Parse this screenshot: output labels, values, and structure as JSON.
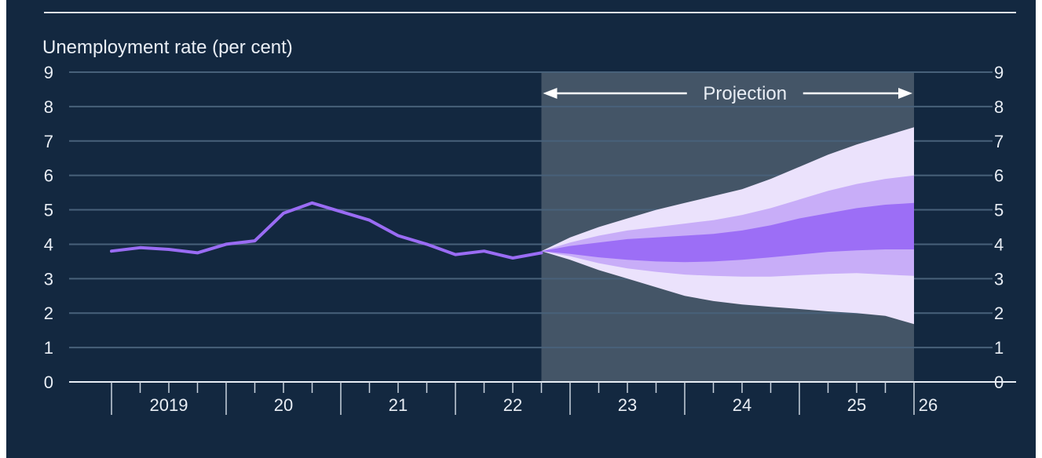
{
  "chart_data": {
    "type": "line",
    "ylabel": "Unemployment rate (per cent)",
    "ylim": [
      0,
      9
    ],
    "yticks": [
      "0",
      "1",
      "2",
      "3",
      "4",
      "5",
      "6",
      "7",
      "8",
      "9"
    ],
    "x_unit": "quarter",
    "x_range": [
      "2019 Q1",
      "2026 Q1"
    ],
    "year_labels": [
      "2019",
      "20",
      "21",
      "22",
      "23",
      "24",
      "25",
      "26"
    ],
    "projection_label": "Projection",
    "projection_start": "2022 Q4",
    "projection_end": "2026 Q1",
    "history": {
      "x": [
        "2019 Q1",
        "2019 Q2",
        "2019 Q3",
        "2019 Q4",
        "2020 Q1",
        "2020 Q2",
        "2020 Q3",
        "2020 Q4",
        "2021 Q1",
        "2021 Q2",
        "2021 Q3",
        "2021 Q4",
        "2022 Q1",
        "2022 Q2",
        "2022 Q3",
        "2022 Q4"
      ],
      "values": [
        3.8,
        3.9,
        3.85,
        3.75,
        4.0,
        4.1,
        4.9,
        5.2,
        4.95,
        4.7,
        4.25,
        4.0,
        3.7,
        3.8,
        3.6,
        3.75
      ]
    },
    "fan": {
      "x": [
        "2022 Q4",
        "2023 Q1",
        "2023 Q2",
        "2023 Q3",
        "2023 Q4",
        "2024 Q1",
        "2024 Q2",
        "2024 Q3",
        "2024 Q4",
        "2025 Q1",
        "2025 Q2",
        "2025 Q3",
        "2025 Q4",
        "2026 Q1"
      ],
      "bands": [
        {
          "lower": [
            3.8,
            3.55,
            3.25,
            3.0,
            2.75,
            2.5,
            2.35,
            2.25,
            2.18,
            2.12,
            2.05,
            2.0,
            1.92,
            1.68
          ],
          "upper": [
            3.8,
            4.2,
            4.5,
            4.75,
            5.0,
            5.2,
            5.4,
            5.6,
            5.9,
            6.25,
            6.6,
            6.9,
            7.15,
            7.4
          ]
        },
        {
          "lower": [
            3.8,
            3.65,
            3.45,
            3.3,
            3.2,
            3.12,
            3.08,
            3.06,
            3.06,
            3.1,
            3.14,
            3.16,
            3.12,
            3.08
          ],
          "upper": [
            3.8,
            4.05,
            4.25,
            4.4,
            4.5,
            4.6,
            4.7,
            4.85,
            5.05,
            5.3,
            5.55,
            5.75,
            5.9,
            6.0
          ]
        },
        {
          "lower": [
            3.8,
            3.72,
            3.62,
            3.55,
            3.5,
            3.48,
            3.5,
            3.55,
            3.62,
            3.7,
            3.78,
            3.82,
            3.85,
            3.85
          ],
          "upper": [
            3.8,
            3.95,
            4.05,
            4.15,
            4.2,
            4.25,
            4.3,
            4.4,
            4.55,
            4.75,
            4.9,
            5.05,
            5.15,
            5.2
          ]
        }
      ]
    },
    "colors": {
      "background": "#132840",
      "projection_shade": "#445567",
      "line": "#9a6cf4",
      "band_outer": "#ebe2fc",
      "band_middle": "#c8adf8",
      "band_inner": "#9c6ef6",
      "grid": "#48617a",
      "text": "#e9eef5"
    }
  }
}
